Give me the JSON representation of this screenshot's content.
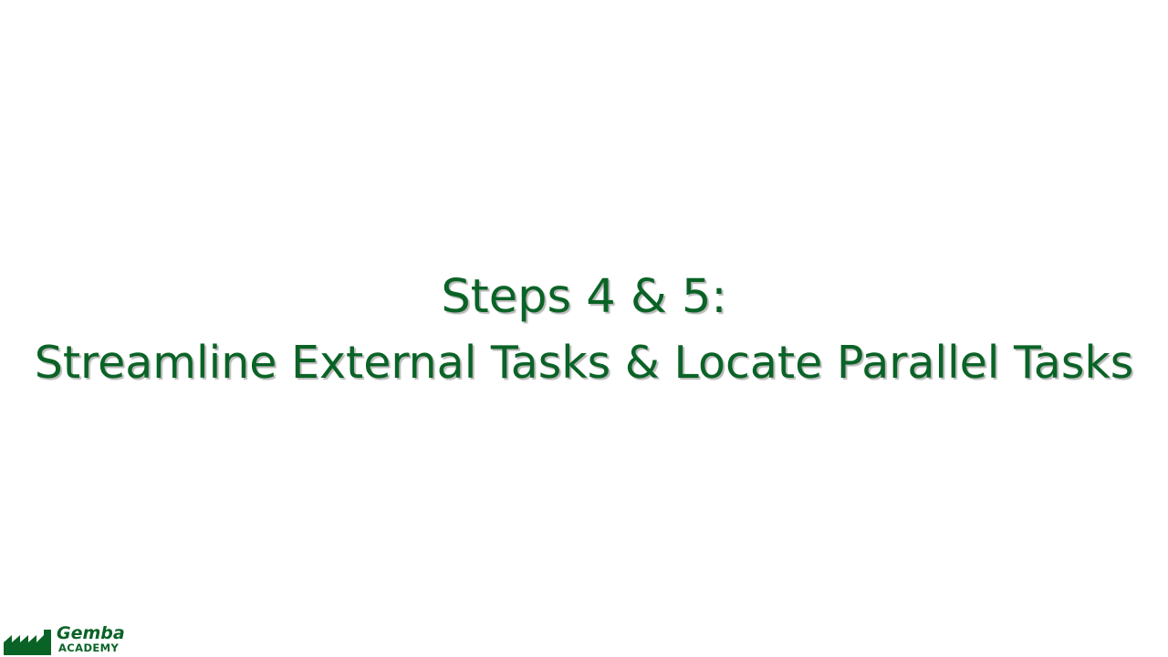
{
  "slide": {
    "title_line_1": "Steps 4 & 5:",
    "title_line_2": "Streamline External Tasks & Locate Parallel Tasks"
  },
  "logo": {
    "name": "Gemba",
    "subtitle": "ACADEMY",
    "icon": "factory-icon"
  },
  "colors": {
    "brand_green": "#0a6326",
    "background": "#ffffff"
  }
}
